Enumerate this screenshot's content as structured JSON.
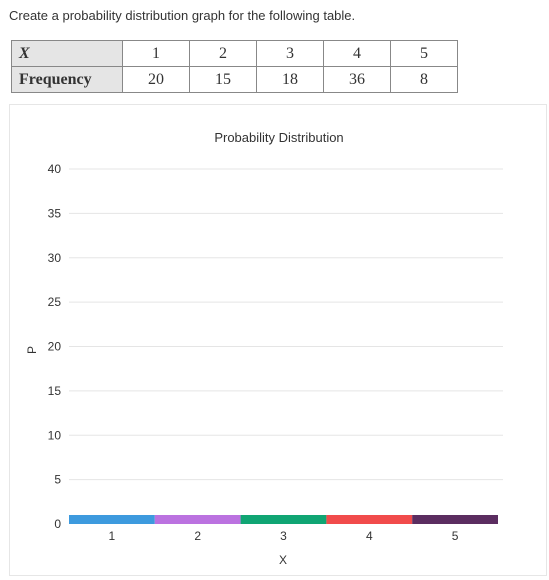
{
  "prompt": "Create a probability distribution graph for the following table.",
  "table": {
    "x_label": "X",
    "freq_label": "Frequency",
    "x_values": [
      "1",
      "2",
      "3",
      "4",
      "5"
    ],
    "frequencies": [
      "20",
      "15",
      "18",
      "36",
      "8"
    ]
  },
  "chart_data": {
    "type": "bar",
    "title": "Probability Distribution",
    "xlabel": "X",
    "ylabel": "P",
    "categories": [
      "1",
      "2",
      "3",
      "4",
      "5"
    ],
    "values": [
      0,
      0,
      0,
      0,
      0
    ],
    "ylim": [
      0,
      40
    ],
    "yticks": [
      0,
      5,
      10,
      15,
      20,
      25,
      30,
      35,
      40
    ],
    "grid": true,
    "bar_colors": [
      "#3d9ade",
      "#bb72e0",
      "#10a573",
      "#f14b4b",
      "#5b2d60"
    ],
    "grid_color": "#e5e5e5"
  }
}
